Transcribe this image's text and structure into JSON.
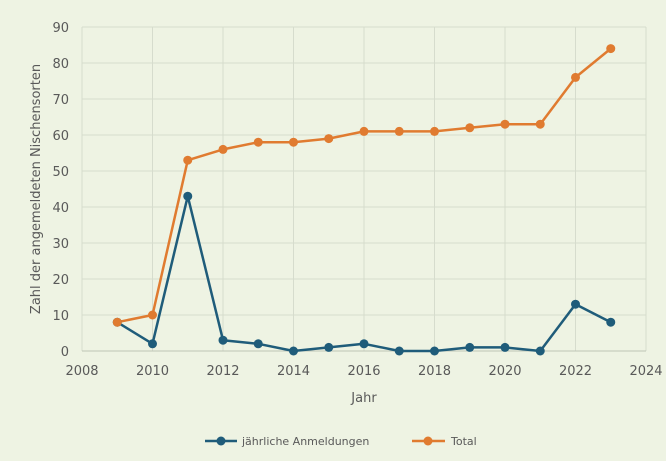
{
  "chart_data": {
    "type": "line",
    "title": "",
    "xlabel": "Jahr",
    "ylabel": "Zahl der angemeldeten Nischensorten",
    "xlim": [
      2008,
      2024
    ],
    "ylim": [
      0,
      90
    ],
    "xticks": [
      2008,
      2010,
      2012,
      2014,
      2016,
      2018,
      2020,
      2022,
      2024
    ],
    "yticks": [
      0,
      10,
      20,
      30,
      40,
      50,
      60,
      70,
      80,
      90
    ],
    "grid": true,
    "legend": "bottom",
    "x": [
      2009,
      2010,
      2011,
      2012,
      2013,
      2014,
      2015,
      2016,
      2017,
      2018,
      2019,
      2020,
      2021,
      2022,
      2023
    ],
    "series": [
      {
        "name": "jährliche Anmeldungen",
        "color": "#1f5c7a",
        "values": [
          8,
          2,
          43,
          3,
          2,
          0,
          1,
          2,
          0,
          0,
          1,
          1,
          0,
          13,
          8
        ]
      },
      {
        "name": "Total",
        "color": "#e07b30",
        "values": [
          8,
          10,
          53,
          56,
          58,
          58,
          59,
          61,
          61,
          61,
          62,
          63,
          63,
          76,
          84
        ]
      }
    ]
  }
}
